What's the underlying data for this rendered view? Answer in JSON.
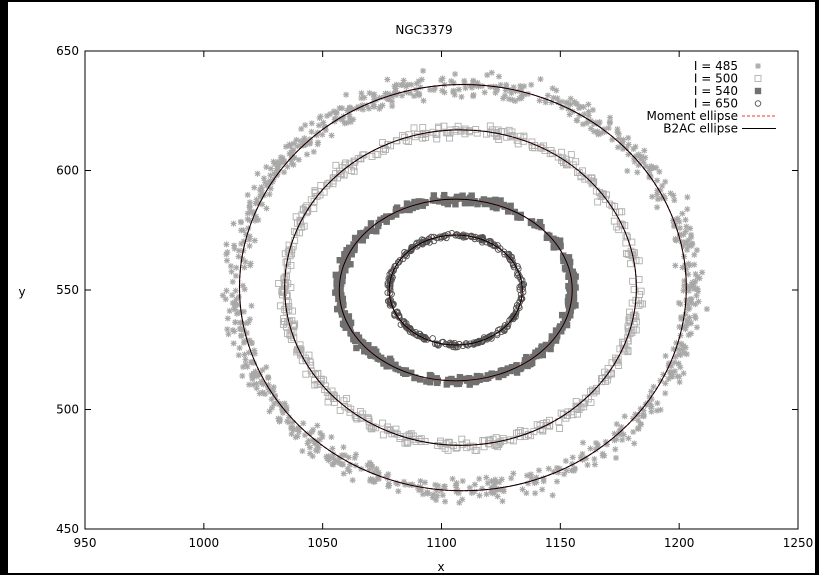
{
  "chart_data": {
    "type": "scatter",
    "title": "NGC3379",
    "xlabel": "x",
    "ylabel": "y",
    "xlim": [
      950,
      1250
    ],
    "ylim": [
      450,
      650
    ],
    "xticks": [
      950,
      1000,
      1050,
      1100,
      1150,
      1200,
      1250
    ],
    "yticks": [
      450,
      500,
      550,
      600,
      650
    ],
    "grid": false,
    "legend_position": "top-right",
    "series": [
      {
        "name": "I = 485",
        "marker": "star",
        "color": "#a8a8a8",
        "ring": {
          "cx": 1109,
          "cy": 551,
          "rx": 96,
          "ry": 85,
          "jitter": 4.5,
          "n": 900
        }
      },
      {
        "name": "I = 500",
        "marker": "open-square",
        "color": "#b0b0b0",
        "ring": {
          "cx": 1108,
          "cy": 551,
          "rx": 74,
          "ry": 66,
          "jitter": 2.2,
          "n": 520
        }
      },
      {
        "name": "I = 540",
        "marker": "filled-square",
        "color": "#707070",
        "ring": {
          "cx": 1106,
          "cy": 550,
          "rx": 49,
          "ry": 38,
          "jitter": 1.8,
          "n": 460
        }
      },
      {
        "name": "I = 650",
        "marker": "open-circle",
        "color": "#505050",
        "ring": {
          "cx": 1106,
          "cy": 550,
          "rx": 28,
          "ry": 23,
          "jitter": 0.9,
          "n": 300
        }
      }
    ],
    "ellipses": [
      {
        "name": "Moment ellipse",
        "color": "#ff3333",
        "style": "dashed",
        "items": [
          {
            "cx": 1109,
            "cy": 551,
            "rx": 94,
            "ry": 85
          },
          {
            "cx": 1108,
            "cy": 551,
            "rx": 74,
            "ry": 66
          },
          {
            "cx": 1106,
            "cy": 550,
            "rx": 49,
            "ry": 38
          },
          {
            "cx": 1106,
            "cy": 550,
            "rx": 28,
            "ry": 23
          }
        ]
      },
      {
        "name": "B2AC ellipse",
        "color": "#000000",
        "style": "solid",
        "items": [
          {
            "cx": 1109,
            "cy": 551,
            "rx": 94,
            "ry": 85
          },
          {
            "cx": 1108,
            "cy": 551,
            "rx": 74,
            "ry": 66
          },
          {
            "cx": 1106,
            "cy": 550,
            "rx": 49,
            "ry": 38
          },
          {
            "cx": 1106,
            "cy": 550,
            "rx": 28,
            "ry": 23
          }
        ]
      }
    ]
  }
}
